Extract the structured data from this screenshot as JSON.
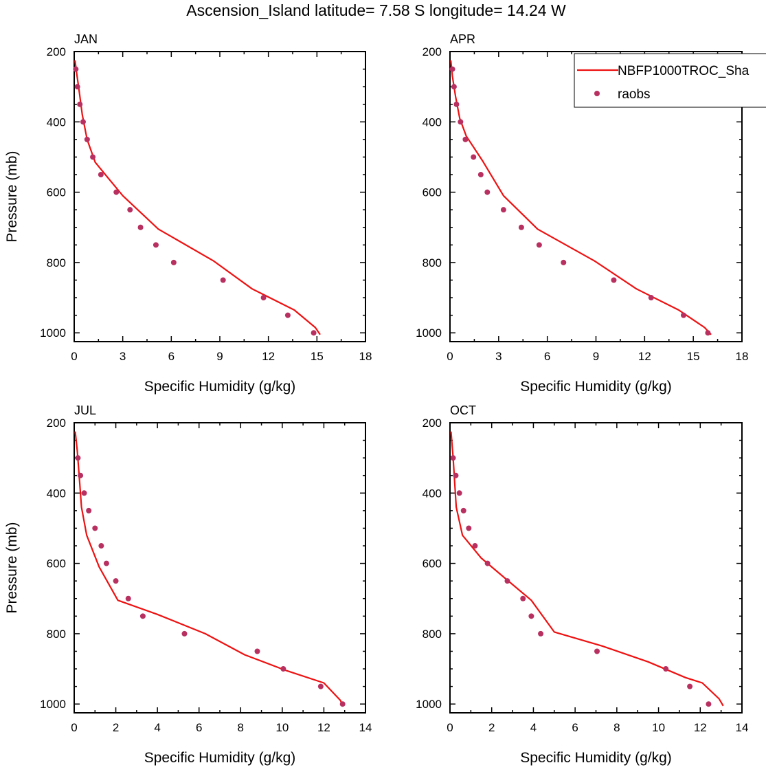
{
  "title": "Ascension_Island  latitude= 7.58 S longitude= 14.24 W",
  "colors": {
    "model_line": "#ee1111",
    "obs_marker": "#b83060",
    "axis": "#000000"
  },
  "legend": {
    "placement": "top-right of APR panel",
    "entries": [
      {
        "label": "NBFP1000TROC_Sha",
        "style": "line",
        "color": "#ee1111"
      },
      {
        "label": "raobs",
        "style": "marker",
        "color": "#b83060"
      }
    ]
  },
  "chart_data": [
    {
      "type": "line",
      "panel_label": "JAN",
      "xlabel": "Specific Humidity (g/kg)",
      "ylabel": "Pressure (mb)",
      "xlim": [
        0,
        18
      ],
      "ylim": [
        1025,
        200
      ],
      "y_inverted": true,
      "xticks": [
        0,
        3,
        6,
        9,
        12,
        15,
        18
      ],
      "yticks": [
        200,
        400,
        600,
        800,
        1000
      ],
      "series": [
        {
          "name": "NBFP1000TROC_Sha",
          "kind": "line",
          "x": [
            0.05,
            0.15,
            0.3,
            0.5,
            0.8,
            1.3,
            2.1,
            3.0,
            5.2,
            8.6,
            11.0,
            13.6,
            14.9,
            15.2
          ],
          "y": [
            225,
            260,
            310,
            380,
            450,
            515,
            560,
            610,
            705,
            795,
            875,
            935,
            985,
            1005
          ]
        },
        {
          "name": "raobs",
          "kind": "marker",
          "x": [
            0.1,
            0.2,
            0.35,
            0.55,
            0.8,
            1.15,
            1.65,
            2.6,
            3.45,
            4.1,
            5.05,
            6.15,
            9.2,
            11.7,
            13.2,
            14.8
          ],
          "y": [
            250,
            300,
            350,
            400,
            450,
            500,
            550,
            600,
            650,
            700,
            750,
            800,
            850,
            900,
            950,
            1000
          ]
        }
      ]
    },
    {
      "type": "line",
      "panel_label": "APR",
      "xlabel": "Specific Humidity (g/kg)",
      "ylabel": "",
      "xlim": [
        0,
        18
      ],
      "ylim": [
        1025,
        200
      ],
      "y_inverted": true,
      "xticks": [
        0,
        3,
        6,
        9,
        12,
        15,
        18
      ],
      "yticks": [
        200,
        400,
        600,
        800,
        1000
      ],
      "series": [
        {
          "name": "NBFP1000TROC_Sha",
          "kind": "line",
          "x": [
            0.05,
            0.15,
            0.35,
            0.6,
            1.0,
            2.0,
            3.3,
            5.4,
            8.9,
            11.5,
            14.1,
            15.7,
            16.1
          ],
          "y": [
            225,
            270,
            330,
            390,
            440,
            510,
            610,
            705,
            795,
            875,
            935,
            985,
            1005
          ]
        },
        {
          "name": "raobs",
          "kind": "marker",
          "x": [
            0.15,
            0.25,
            0.4,
            0.65,
            0.95,
            1.45,
            1.9,
            2.3,
            3.3,
            4.4,
            5.5,
            7.0,
            10.1,
            12.4,
            14.4,
            15.9
          ],
          "y": [
            250,
            300,
            350,
            400,
            450,
            500,
            550,
            600,
            650,
            700,
            750,
            800,
            850,
            900,
            950,
            1000
          ]
        }
      ]
    },
    {
      "type": "line",
      "panel_label": "JUL",
      "xlabel": "Specific Humidity (g/kg)",
      "ylabel": "Pressure (mb)",
      "xlim": [
        0,
        14
      ],
      "ylim": [
        1025,
        200
      ],
      "y_inverted": true,
      "xticks": [
        0,
        2,
        4,
        6,
        8,
        10,
        12,
        14
      ],
      "yticks": [
        200,
        400,
        600,
        800,
        1000
      ],
      "series": [
        {
          "name": "NBFP1000TROC_Sha",
          "kind": "line",
          "x": [
            0.05,
            0.15,
            0.25,
            0.35,
            0.6,
            1.2,
            2.1,
            4.0,
            6.3,
            8.2,
            10.2,
            12.0,
            12.8,
            12.9
          ],
          "y": [
            225,
            280,
            360,
            440,
            520,
            610,
            705,
            745,
            800,
            860,
            905,
            940,
            990,
            1005
          ]
        },
        {
          "name": "raobs",
          "kind": "marker",
          "x": [
            0.18,
            0.3,
            0.48,
            0.7,
            1.0,
            1.3,
            1.55,
            2.0,
            2.6,
            3.3,
            5.3,
            8.8,
            10.05,
            11.85,
            12.9
          ],
          "y": [
            300,
            350,
            400,
            450,
            500,
            550,
            600,
            650,
            700,
            750,
            800,
            850,
            900,
            950,
            1000
          ]
        }
      ]
    },
    {
      "type": "line",
      "panel_label": "OCT",
      "xlabel": "Specific Humidity (g/kg)",
      "ylabel": "",
      "xlim": [
        0,
        14
      ],
      "ylim": [
        1025,
        200
      ],
      "y_inverted": true,
      "xticks": [
        0,
        2,
        4,
        6,
        8,
        10,
        12,
        14
      ],
      "yticks": [
        200,
        400,
        600,
        800,
        1000
      ],
      "series": [
        {
          "name": "NBFP1000TROC_Sha",
          "kind": "line",
          "x": [
            0.05,
            0.15,
            0.3,
            0.6,
            1.5,
            2.6,
            3.9,
            5.0,
            7.3,
            9.5,
            11.3,
            12.1,
            12.9,
            13.1
          ],
          "y": [
            225,
            300,
            440,
            520,
            585,
            640,
            705,
            795,
            835,
            880,
            925,
            940,
            985,
            1005
          ]
        },
        {
          "name": "raobs",
          "kind": "marker",
          "x": [
            0.15,
            0.28,
            0.45,
            0.65,
            0.9,
            1.2,
            1.8,
            2.75,
            3.5,
            3.9,
            4.35,
            7.05,
            10.35,
            11.5,
            12.4
          ],
          "y": [
            300,
            350,
            400,
            450,
            500,
            550,
            600,
            650,
            700,
            750,
            800,
            850,
            900,
            950,
            1000
          ]
        }
      ]
    }
  ]
}
